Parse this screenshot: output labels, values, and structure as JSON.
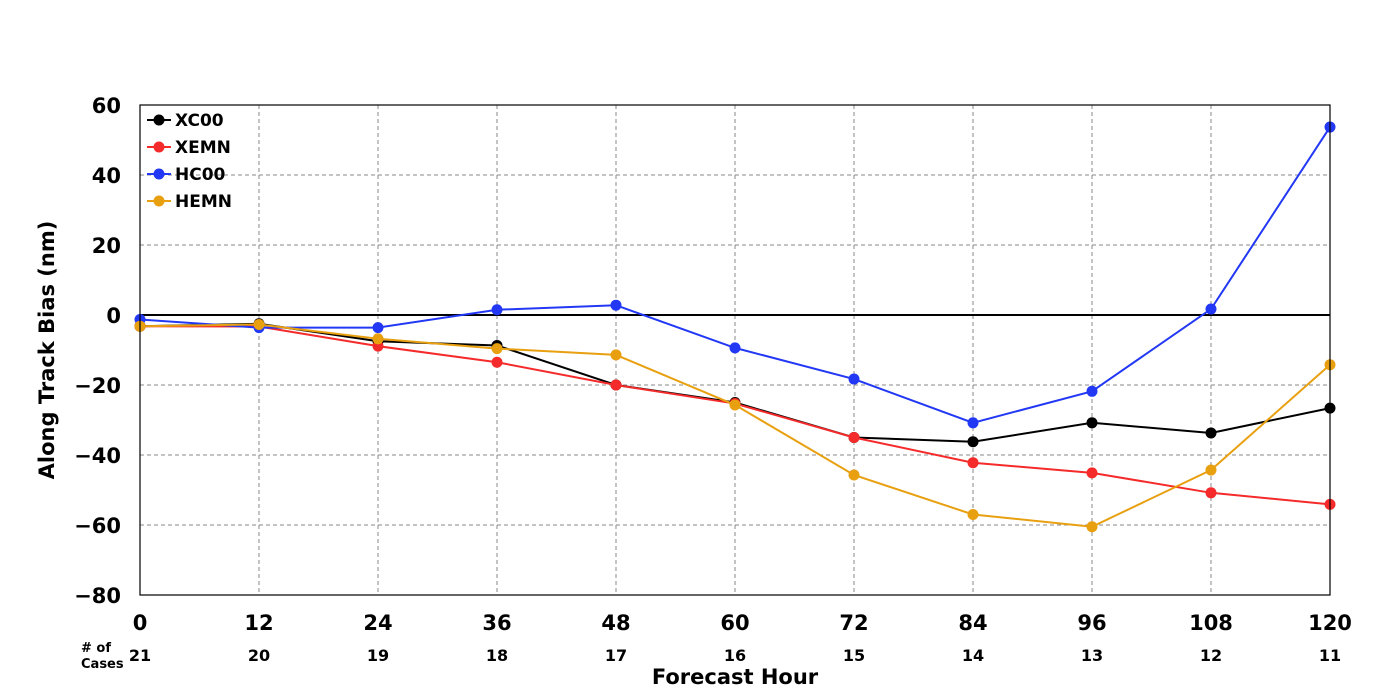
{
  "chart_data": {
    "type": "line",
    "xlabel": "Forecast Hour",
    "ylabel": "Along Track Bias (nm)",
    "x": [
      0,
      12,
      24,
      36,
      48,
      60,
      72,
      84,
      96,
      108,
      120
    ],
    "xlim": [
      0,
      120
    ],
    "ylim": [
      -80,
      60
    ],
    "yticks": [
      -80,
      -60,
      -40,
      -20,
      0,
      20,
      40,
      60
    ],
    "ytick_labels": [
      "−80",
      "−60",
      "−40",
      "−20",
      "0",
      "20",
      "40",
      "60"
    ],
    "xtick_labels": [
      "0",
      "12",
      "24",
      "36",
      "48",
      "60",
      "72",
      "84",
      "96",
      "108",
      "120"
    ],
    "cases_label_line1": "# of",
    "cases_label_line2": "Cases",
    "cases": [
      "21",
      "20",
      "19",
      "18",
      "17",
      "16",
      "15",
      "14",
      "13",
      "12",
      "11"
    ],
    "grid": true,
    "zero_line": true,
    "legend_position": "top-left",
    "series": [
      {
        "name": "XC00",
        "color": "#000000",
        "values": [
          -3.2,
          -2.5,
          -7.5,
          -8.7,
          -20.0,
          -25.0,
          -35.0,
          -36.2,
          -30.8,
          -33.7,
          -26.6
        ]
      },
      {
        "name": "XEMN",
        "color": "#f52a2a",
        "values": [
          -3.2,
          -3.3,
          -8.9,
          -13.5,
          -20.0,
          -25.3,
          -35.0,
          -42.2,
          -45.1,
          -50.8,
          -54.1
        ]
      },
      {
        "name": "HC00",
        "color": "#2238f5",
        "values": [
          -1.3,
          -3.6,
          -3.6,
          1.5,
          2.8,
          -9.4,
          -18.3,
          -30.8,
          -21.8,
          1.7,
          53.7
        ]
      },
      {
        "name": "HEMN",
        "color": "#e8a010",
        "values": [
          -3.2,
          -2.7,
          -6.8,
          -9.6,
          -11.4,
          -25.7,
          -45.7,
          -57.0,
          -60.5,
          -44.3,
          -14.2
        ]
      }
    ]
  }
}
